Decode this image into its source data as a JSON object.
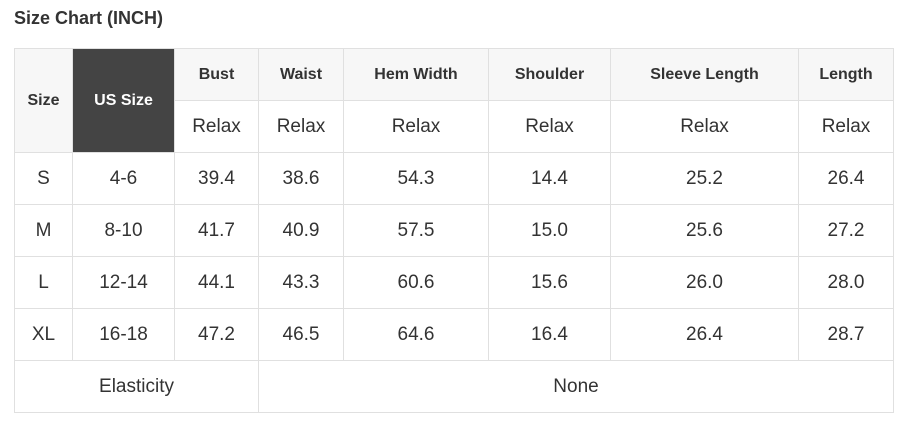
{
  "title": "Size Chart (INCH)",
  "headers": {
    "size": "Size",
    "us_size": "US Size",
    "cols": [
      "Bust",
      "Waist",
      "Hem Width",
      "Shoulder",
      "Sleeve Length",
      "Length"
    ],
    "fit": [
      "Relax",
      "Relax",
      "Relax",
      "Relax",
      "Relax",
      "Relax"
    ]
  },
  "rows": [
    [
      "S",
      "4-6",
      "39.4",
      "38.6",
      "54.3",
      "14.4",
      "25.2",
      "26.4"
    ],
    [
      "M",
      "8-10",
      "41.7",
      "40.9",
      "57.5",
      "15.0",
      "25.6",
      "27.2"
    ],
    [
      "L",
      "12-14",
      "44.1",
      "43.3",
      "60.6",
      "15.6",
      "26.0",
      "28.0"
    ],
    [
      "XL",
      "16-18",
      "47.2",
      "46.5",
      "64.6",
      "16.4",
      "26.4",
      "28.7"
    ]
  ],
  "elasticity": {
    "label": "Elasticity",
    "value": "None"
  },
  "colors": {
    "header_bg": "#f7f7f7",
    "us_size_bg": "#444444",
    "border": "#e0e0e0"
  }
}
